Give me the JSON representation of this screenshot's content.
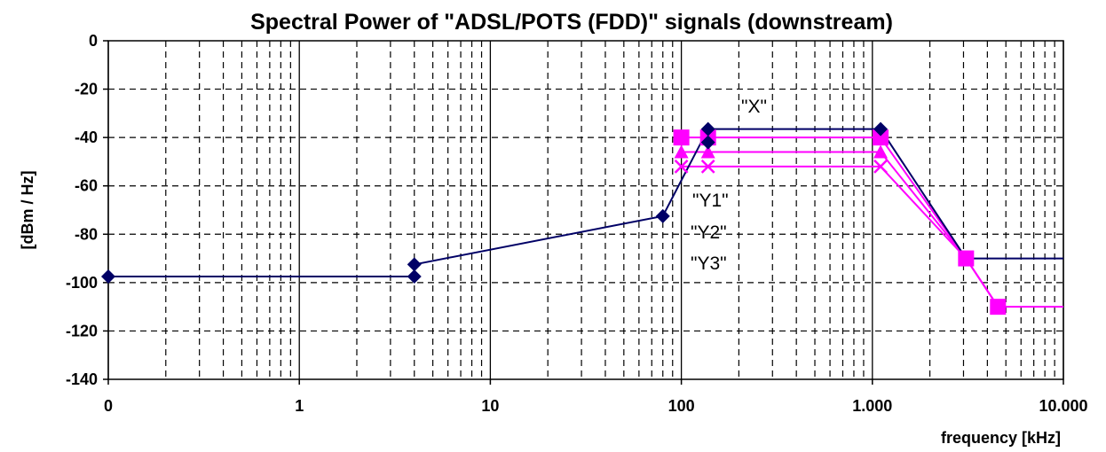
{
  "chart_data": {
    "type": "line",
    "title": "Spectral Power of \"ADSL/POTS (FDD)\" signals (downstream)",
    "xlabel": "frequency [kHz]",
    "ylabel": "[dBm / Hz]",
    "x_scale": "log",
    "x_ticks": [
      0.1,
      1,
      10,
      100,
      1000,
      10000
    ],
    "x_tick_labels": [
      "0",
      "1",
      "10",
      "100",
      "1.000",
      "10.000"
    ],
    "xlim": [
      0.1,
      10000
    ],
    "ylim": [
      -140,
      0
    ],
    "y_ticks": [
      0,
      -20,
      -40,
      -60,
      -80,
      -100,
      -120,
      -140
    ],
    "y_tick_labels": [
      "0",
      "-20",
      "-40",
      "-60",
      "-80",
      "-100",
      "-120",
      "-140"
    ],
    "grid": true,
    "colors": {
      "X": "#000066",
      "Y": "#ff00ff"
    },
    "series": [
      {
        "name": "\"X\"",
        "marker": "diamond",
        "points": [
          [
            0.1,
            -97.5
          ],
          [
            4,
            -97.5
          ],
          [
            4,
            -92.5
          ],
          [
            80,
            -72.5
          ],
          [
            138,
            -36.5
          ],
          [
            1104,
            -36.5
          ],
          [
            3093,
            -90
          ],
          [
            10000,
            -90
          ]
        ],
        "markers": [
          [
            0.1,
            -97.5
          ],
          [
            4,
            -97.5
          ],
          [
            4,
            -92.5
          ],
          [
            80,
            -72.5
          ],
          [
            138,
            -36.5
          ],
          [
            138,
            -42
          ],
          [
            1104,
            -36.5
          ]
        ]
      },
      {
        "name": "\"Y1\"",
        "marker": "square",
        "points": [
          [
            100,
            -40
          ],
          [
            138,
            -40
          ],
          [
            1104,
            -40
          ],
          [
            3093,
            -90
          ],
          [
            4545,
            -110
          ],
          [
            10000,
            -110
          ]
        ],
        "markers": [
          [
            100,
            -40
          ],
          [
            138,
            -40
          ],
          [
            1104,
            -40
          ],
          [
            3093,
            -90
          ],
          [
            4545,
            -110
          ]
        ]
      },
      {
        "name": "\"Y2\"",
        "marker": "triangle",
        "points": [
          [
            100,
            -46
          ],
          [
            138,
            -46
          ],
          [
            1104,
            -46
          ],
          [
            3093,
            -90
          ],
          [
            4545,
            -110
          ]
        ],
        "markers": [
          [
            100,
            -46
          ],
          [
            138,
            -46
          ],
          [
            1104,
            -46
          ]
        ]
      },
      {
        "name": "\"Y3\"",
        "marker": "x",
        "points": [
          [
            100,
            -52
          ],
          [
            138,
            -52
          ],
          [
            1104,
            -52
          ],
          [
            3093,
            -90
          ],
          [
            4545,
            -110
          ]
        ],
        "markers": [
          [
            100,
            -52
          ],
          [
            138,
            -52
          ],
          [
            1104,
            -52
          ]
        ]
      }
    ],
    "annotations": [
      "\"X\"",
      "\"Y1\"",
      "\"Y2\"",
      "\"Y3\""
    ]
  }
}
